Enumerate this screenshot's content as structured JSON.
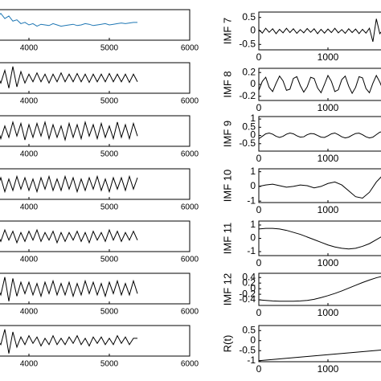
{
  "chart_data": [
    {
      "type": "line",
      "color": "#1f77b4",
      "xlim": [
        3000,
        6000
      ],
      "xticks": [
        4000,
        5000,
        6000
      ],
      "ylim": [
        -1.2,
        1.2
      ],
      "x": [
        3600,
        3650,
        3700,
        3750,
        3800,
        3850,
        3900,
        3950,
        4000,
        4050,
        4100,
        4150,
        4200,
        4250,
        4300,
        4350,
        4400,
        4450,
        4500,
        4550,
        4600,
        4650,
        4700,
        4750,
        4800,
        4850,
        4900,
        4950,
        5000,
        5050,
        5100,
        5150,
        5200,
        5250,
        5300,
        5350
      ],
      "values": [
        0.6,
        0.9,
        0.5,
        0.7,
        0.3,
        0.4,
        0.1,
        0.2,
        0.0,
        0.1,
        -0.1,
        0.05,
        0.0,
        -0.05,
        0.1,
        0.0,
        -0.1,
        -0.05,
        0.0,
        0.05,
        -0.05,
        0.0,
        0.1,
        0.05,
        -0.05,
        0.0,
        0.05,
        0.1,
        0.0,
        0.05,
        0.1,
        0.15,
        0.1,
        0.15,
        0.2,
        0.2
      ]
    },
    {
      "type": "line",
      "color": "#000000",
      "xlim": [
        3000,
        6000
      ],
      "xticks": [
        4000,
        5000,
        6000
      ],
      "ylim": [
        -1.2,
        1.2
      ],
      "x": [
        3600,
        3650,
        3700,
        3750,
        3800,
        3850,
        3900,
        3950,
        4000,
        4050,
        4100,
        4150,
        4200,
        4250,
        4300,
        4350,
        4400,
        4450,
        4500,
        4550,
        4600,
        4650,
        4700,
        4750,
        4800,
        4850,
        4900,
        4950,
        5000,
        5050,
        5100,
        5150,
        5200,
        5250,
        5300,
        5350
      ],
      "values": [
        0.3,
        -0.4,
        0.6,
        -0.8,
        0.9,
        -0.7,
        0.5,
        -0.4,
        0.3,
        -0.3,
        0.4,
        -0.3,
        0.3,
        -0.4,
        0.3,
        -0.3,
        0.4,
        -0.3,
        0.3,
        -0.3,
        0.35,
        -0.3,
        0.3,
        -0.35,
        0.3,
        -0.3,
        0.3,
        -0.3,
        0.35,
        -0.3,
        0.3,
        -0.3,
        0.3,
        -0.35,
        0.3,
        -0.3
      ]
    },
    {
      "type": "line",
      "color": "#000000",
      "xlim": [
        3000,
        6000
      ],
      "xticks": [
        4000,
        5000,
        6000
      ],
      "ylim": [
        -1.2,
        1.2
      ],
      "x": [
        3600,
        3650,
        3700,
        3750,
        3800,
        3850,
        3900,
        3950,
        4000,
        4050,
        4100,
        4150,
        4200,
        4250,
        4300,
        4350,
        4400,
        4450,
        4500,
        4550,
        4600,
        4650,
        4700,
        4750,
        4800,
        4850,
        4900,
        4950,
        5000,
        5050,
        5100,
        5150,
        5200,
        5250,
        5300,
        5350
      ],
      "values": [
        0.5,
        -0.6,
        0.4,
        -0.5,
        0.7,
        -0.4,
        0.6,
        -0.7,
        0.5,
        -0.5,
        0.6,
        -0.4,
        0.7,
        -0.6,
        0.5,
        -0.5,
        0.4,
        -0.7,
        0.6,
        -0.5,
        0.5,
        -0.6,
        0.7,
        -0.4,
        0.5,
        -0.6,
        0.6,
        -0.5,
        0.4,
        -0.6,
        0.7,
        -0.5,
        0.5,
        -0.6,
        0.6,
        -0.4
      ]
    },
    {
      "type": "line",
      "color": "#000000",
      "xlim": [
        3000,
        6000
      ],
      "xticks": [
        4000,
        5000,
        6000
      ],
      "ylim": [
        -1.2,
        1.2
      ],
      "x": [
        3600,
        3650,
        3700,
        3750,
        3800,
        3850,
        3900,
        3950,
        4000,
        4050,
        4100,
        4150,
        4200,
        4250,
        4300,
        4350,
        4400,
        4450,
        4500,
        4550,
        4600,
        4650,
        4700,
        4750,
        4800,
        4850,
        4900,
        4950,
        5000,
        5050,
        5100,
        5150,
        5200,
        5250,
        5300,
        5350
      ],
      "values": [
        -0.4,
        0.5,
        -0.6,
        0.4,
        -0.5,
        0.6,
        -0.4,
        0.5,
        -0.5,
        0.4,
        -0.6,
        0.5,
        -0.4,
        0.6,
        -0.5,
        0.4,
        -0.5,
        0.6,
        -0.4,
        0.5,
        -0.6,
        0.4,
        -0.5,
        0.5,
        -0.4,
        0.6,
        -0.5,
        0.4,
        -0.6,
        0.5,
        -0.4,
        0.5,
        -0.5,
        0.6,
        -0.4,
        0.5
      ]
    },
    {
      "type": "line",
      "color": "#000000",
      "xlim": [
        3000,
        6000
      ],
      "xticks": [
        4000,
        5000,
        6000
      ],
      "ylim": [
        -1.2,
        1.2
      ],
      "x": [
        3600,
        3650,
        3700,
        3750,
        3800,
        3850,
        3900,
        3950,
        4000,
        4050,
        4100,
        4150,
        4200,
        4250,
        4300,
        4350,
        4400,
        4450,
        4500,
        4550,
        4600,
        4650,
        4700,
        4750,
        4800,
        4850,
        4900,
        4950,
        5000,
        5050,
        5100,
        5150,
        5200,
        5250,
        5300,
        5350
      ],
      "values": [
        0.3,
        -0.4,
        0.5,
        -0.3,
        0.4,
        -0.5,
        0.3,
        -0.4,
        0.4,
        -0.3,
        0.5,
        -0.4,
        0.3,
        -0.3,
        0.4,
        -0.5,
        0.3,
        -0.4,
        0.3,
        -0.3,
        0.4,
        -0.4,
        0.3,
        -0.5,
        0.4,
        -0.3,
        0.3,
        -0.4,
        0.5,
        -0.3,
        0.4,
        -0.4,
        0.3,
        -0.3,
        0.4,
        -0.3
      ]
    },
    {
      "type": "line",
      "color": "#000000",
      "xlim": [
        3000,
        6000
      ],
      "xticks": [
        4000,
        5000,
        6000
      ],
      "ylim": [
        -1.2,
        1.2
      ],
      "x": [
        3600,
        3650,
        3700,
        3750,
        3800,
        3850,
        3900,
        3950,
        4000,
        4050,
        4100,
        4150,
        4200,
        4250,
        4300,
        4350,
        4400,
        4450,
        4500,
        4550,
        4600,
        4650,
        4700,
        4750,
        4800,
        4850,
        4900,
        4950,
        5000,
        5050,
        5100,
        5150,
        5200,
        5250,
        5300,
        5350
      ],
      "values": [
        0.2,
        -0.5,
        0.9,
        -1.0,
        0.8,
        -0.6,
        0.5,
        -0.4,
        0.5,
        -0.5,
        0.4,
        -0.6,
        0.5,
        -0.4,
        0.6,
        -0.5,
        0.4,
        -0.5,
        0.5,
        -0.6,
        0.4,
        -0.5,
        0.6,
        -0.4,
        0.5,
        -0.5,
        0.4,
        -0.6,
        0.5,
        -0.4,
        0.6,
        -0.5,
        0.4,
        -0.5,
        0.6,
        -0.4
      ]
    },
    {
      "type": "line",
      "color": "#000000",
      "xlim": [
        3000,
        6000
      ],
      "xticks": [
        4000,
        5000,
        6000
      ],
      "ylim": [
        -1.2,
        1.2
      ],
      "x": [
        3600,
        3650,
        3700,
        3750,
        3800,
        3850,
        3900,
        3950,
        4000,
        4050,
        4100,
        4150,
        4200,
        4250,
        4300,
        4350,
        4400,
        4450,
        4500,
        4550,
        4600,
        4650,
        4700,
        4750,
        4800,
        4850,
        4900,
        4950,
        5000,
        5050,
        5100,
        5150,
        5200,
        5250,
        5300,
        5350
      ],
      "values": [
        0.1,
        -0.3,
        0.9,
        -1.0,
        0.7,
        -0.5,
        0.3,
        -0.3,
        0.4,
        -0.2,
        0.3,
        -0.4,
        0.2,
        -0.3,
        0.4,
        -0.3,
        0.2,
        -0.3,
        0.3,
        -0.2,
        0.4,
        -0.3,
        0.2,
        -0.4,
        0.3,
        -0.2,
        0.3,
        -0.3,
        0.2,
        -0.3,
        0.4,
        -0.2,
        0.3,
        -0.3,
        0.2,
        0.2
      ]
    },
    {
      "type": "line",
      "color": "#000000",
      "y_label": "IMF 7",
      "xlim": [
        0,
        2000
      ],
      "xticks": [
        0,
        1000
      ],
      "ylim": [
        -0.7,
        0.7
      ],
      "yticks": [
        -0.5,
        0,
        0.5
      ],
      "x": [
        0,
        50,
        100,
        150,
        200,
        250,
        300,
        350,
        400,
        450,
        500,
        550,
        600,
        650,
        700,
        750,
        800,
        850,
        900,
        950,
        1000,
        1050,
        1100,
        1150,
        1200,
        1250,
        1300,
        1350,
        1400,
        1450,
        1500,
        1550,
        1600,
        1650,
        1700,
        1750,
        1800
      ],
      "values": [
        0.05,
        -0.08,
        0.1,
        -0.05,
        0.08,
        -0.1,
        0.06,
        -0.07,
        0.1,
        -0.06,
        0.08,
        -0.09,
        0.05,
        -0.07,
        0.09,
        -0.05,
        0.08,
        -0.1,
        0.06,
        -0.08,
        0.07,
        -0.06,
        0.1,
        -0.07,
        0.05,
        -0.09,
        0.08,
        -0.06,
        0.07,
        -0.1,
        0.06,
        -0.08,
        0.1,
        -0.4,
        0.45,
        -0.1,
        0.05
      ]
    },
    {
      "type": "line",
      "color": "#000000",
      "y_label": "IMF 8",
      "xlim": [
        0,
        2000
      ],
      "xticks": [
        0,
        1000
      ],
      "ylim": [
        -0.27,
        0.27
      ],
      "yticks": [
        -0.2,
        0,
        0.2
      ],
      "x": [
        0,
        50,
        100,
        150,
        200,
        250,
        300,
        350,
        400,
        450,
        500,
        550,
        600,
        650,
        700,
        750,
        800,
        850,
        900,
        950,
        1000,
        1050,
        1100,
        1150,
        1200,
        1250,
        1300,
        1350,
        1400,
        1450,
        1500,
        1550,
        1600,
        1650,
        1700,
        1750,
        1800
      ],
      "values": [
        -0.1,
        0.05,
        0.12,
        -0.05,
        -0.12,
        0.02,
        0.14,
        0.06,
        -0.1,
        -0.08,
        0.1,
        0.13,
        -0.02,
        -0.13,
        -0.04,
        0.12,
        0.1,
        -0.06,
        -0.14,
        0.0,
        0.15,
        0.05,
        -0.12,
        -0.09,
        0.08,
        0.14,
        -0.03,
        -0.15,
        -0.05,
        0.13,
        0.11,
        -0.07,
        -0.14,
        0.02,
        0.15,
        0.04,
        -0.1
      ]
    },
    {
      "type": "line",
      "color": "#000000",
      "y_label": "IMF 9",
      "xlim": [
        0,
        2000
      ],
      "xticks": [
        0,
        1000
      ],
      "ylim": [
        -0.95,
        1.15
      ],
      "yticks": [
        -0.5,
        0,
        0.5,
        1
      ],
      "x": [
        0,
        50,
        100,
        150,
        200,
        250,
        300,
        350,
        400,
        450,
        500,
        550,
        600,
        650,
        700,
        750,
        800,
        850,
        900,
        950,
        1000,
        1050,
        1100,
        1150,
        1200,
        1250,
        1300,
        1350,
        1400,
        1450,
        1500,
        1550,
        1600,
        1650,
        1700,
        1750,
        1800
      ],
      "values": [
        -0.2,
        -0.05,
        0.1,
        0.15,
        0.08,
        -0.05,
        -0.12,
        -0.05,
        0.08,
        0.15,
        0.1,
        -0.02,
        -0.1,
        -0.08,
        0.05,
        0.12,
        0.1,
        0.0,
        -0.1,
        -0.12,
        -0.02,
        0.1,
        0.15,
        0.05,
        -0.08,
        -0.15,
        -0.1,
        0.02,
        0.12,
        0.14,
        0.05,
        -0.08,
        -0.15,
        -0.1,
        0.05,
        0.2,
        0.25
      ]
    },
    {
      "type": "line",
      "color": "#000000",
      "y_label": "IMF 10",
      "xlim": [
        0,
        2000
      ],
      "xticks": [
        0,
        1000
      ],
      "ylim": [
        -1.1,
        1.2
      ],
      "yticks": [
        -1,
        0,
        1
      ],
      "x": [
        0,
        100,
        200,
        300,
        400,
        500,
        600,
        700,
        800,
        900,
        1000,
        1100,
        1200,
        1300,
        1400,
        1500,
        1600,
        1700,
        1800
      ],
      "values": [
        0,
        0.1,
        0.15,
        0.05,
        -0.05,
        0.0,
        0.1,
        0.05,
        -0.1,
        0.0,
        0.2,
        0.3,
        0.1,
        -0.3,
        -0.7,
        -0.8,
        -0.4,
        0.3,
        0.8
      ]
    },
    {
      "type": "line",
      "color": "#000000",
      "y_label": "IMF 11",
      "xlim": [
        0,
        2000
      ],
      "xticks": [
        0,
        1000
      ],
      "ylim": [
        -1.3,
        1.3
      ],
      "yticks": [
        -1,
        0,
        1
      ],
      "x": [
        0,
        100,
        200,
        300,
        400,
        500,
        600,
        700,
        800,
        900,
        1000,
        1100,
        1200,
        1300,
        1400,
        1500,
        1600,
        1700,
        1800
      ],
      "values": [
        0.7,
        0.75,
        0.75,
        0.7,
        0.6,
        0.45,
        0.3,
        0.1,
        -0.1,
        -0.3,
        -0.5,
        -0.65,
        -0.75,
        -0.8,
        -0.75,
        -0.6,
        -0.4,
        -0.1,
        0.2
      ]
    },
    {
      "type": "line",
      "color": "#000000",
      "y_label": "IMF 12",
      "xlim": [
        0,
        2000
      ],
      "xticks": [
        0,
        1000
      ],
      "ylim": [
        -0.6,
        0.55
      ],
      "yticks": [
        -0.4,
        -0.2,
        0,
        0.2,
        0.4
      ],
      "x": [
        0,
        100,
        200,
        300,
        400,
        500,
        600,
        700,
        800,
        900,
        1000,
        1100,
        1200,
        1300,
        1400,
        1500,
        1600,
        1700,
        1800
      ],
      "values": [
        -0.4,
        -0.42,
        -0.44,
        -0.45,
        -0.45,
        -0.45,
        -0.44,
        -0.42,
        -0.38,
        -0.32,
        -0.25,
        -0.17,
        -0.08,
        0.02,
        0.12,
        0.22,
        0.31,
        0.39,
        0.45
      ]
    },
    {
      "type": "line",
      "color": "#000000",
      "y_label": "R(t)",
      "xlim": [
        0,
        2000
      ],
      "xticks": [
        0,
        1000
      ],
      "ylim": [
        -1.05,
        0.75
      ],
      "yticks": [
        -1,
        -0.5,
        0,
        0.5
      ],
      "x": [
        0,
        100,
        200,
        300,
        400,
        500,
        600,
        700,
        800,
        900,
        1000,
        1100,
        1200,
        1300,
        1400,
        1500,
        1600,
        1700,
        1800
      ],
      "values": [
        -1,
        -0.97,
        -0.94,
        -0.91,
        -0.88,
        -0.85,
        -0.82,
        -0.79,
        -0.76,
        -0.73,
        -0.7,
        -0.67,
        -0.64,
        -0.61,
        -0.58,
        -0.55,
        -0.52,
        -0.49,
        -0.46
      ]
    }
  ]
}
